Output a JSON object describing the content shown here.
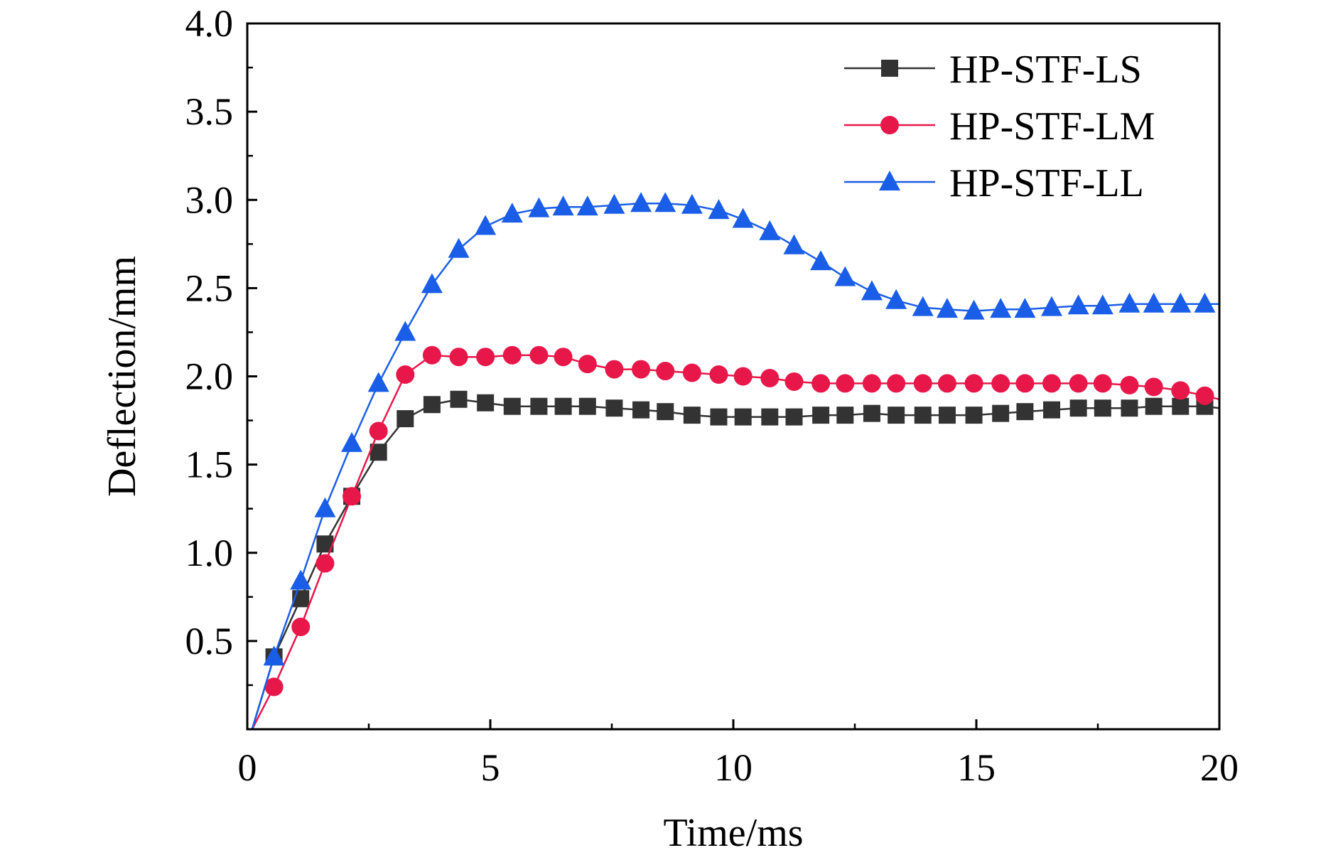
{
  "chart_data": {
    "type": "line",
    "xlabel": "Time/ms",
    "ylabel": "Deflection/mm",
    "xlim": [
      0,
      20
    ],
    "ylim": [
      0,
      4.0
    ],
    "x_ticks": [
      "0",
      "5",
      "10",
      "15",
      "20"
    ],
    "y_ticks": [
      "0.5",
      "1.0",
      "1.5",
      "2.0",
      "2.5",
      "3.0",
      "3.5",
      "4.0"
    ],
    "grid": false,
    "legend_position": "top-right",
    "series": [
      {
        "name": "HP-STF-LS",
        "color": "#333333",
        "marker": "square",
        "x": [
          0.1,
          0.55,
          1.1,
          1.6,
          2.15,
          2.7,
          3.25,
          3.8,
          4.35,
          4.9,
          5.45,
          6.0,
          6.5,
          7.0,
          7.55,
          8.1,
          8.6,
          9.15,
          9.7,
          10.2,
          10.75,
          11.25,
          11.8,
          12.3,
          12.85,
          13.35,
          13.9,
          14.4,
          14.95,
          15.5,
          16.0,
          16.55,
          17.1,
          17.6,
          18.15,
          18.65,
          19.2,
          19.7,
          20.0
        ],
        "y": [
          0.0,
          0.41,
          0.74,
          1.05,
          1.32,
          1.57,
          1.76,
          1.84,
          1.87,
          1.85,
          1.83,
          1.83,
          1.83,
          1.83,
          1.82,
          1.81,
          1.8,
          1.78,
          1.77,
          1.77,
          1.77,
          1.77,
          1.78,
          1.78,
          1.79,
          1.78,
          1.78,
          1.78,
          1.78,
          1.79,
          1.8,
          1.81,
          1.82,
          1.82,
          1.82,
          1.83,
          1.83,
          1.83,
          1.82
        ]
      },
      {
        "name": "HP-STF-LM",
        "color": "#e8174a",
        "marker": "circle",
        "x": [
          0.1,
          0.55,
          1.1,
          1.6,
          2.15,
          2.7,
          3.25,
          3.8,
          4.35,
          4.9,
          5.45,
          6.0,
          6.5,
          7.0,
          7.55,
          8.1,
          8.6,
          9.15,
          9.7,
          10.2,
          10.75,
          11.25,
          11.8,
          12.3,
          12.85,
          13.35,
          13.9,
          14.4,
          14.95,
          15.5,
          16.0,
          16.55,
          17.1,
          17.6,
          18.15,
          18.65,
          19.2,
          19.7,
          20.0
        ],
        "y": [
          0.0,
          0.24,
          0.58,
          0.94,
          1.32,
          1.69,
          2.01,
          2.12,
          2.11,
          2.11,
          2.12,
          2.12,
          2.11,
          2.07,
          2.04,
          2.04,
          2.03,
          2.02,
          2.01,
          2.0,
          1.99,
          1.97,
          1.96,
          1.96,
          1.96,
          1.96,
          1.96,
          1.96,
          1.96,
          1.96,
          1.96,
          1.96,
          1.96,
          1.96,
          1.95,
          1.94,
          1.92,
          1.89,
          1.87
        ]
      },
      {
        "name": "HP-STF-LL",
        "color": "#1a5ee8",
        "marker": "triangle",
        "x": [
          0.1,
          0.55,
          1.1,
          1.6,
          2.15,
          2.7,
          3.25,
          3.8,
          4.35,
          4.9,
          5.45,
          6.0,
          6.5,
          7.0,
          7.55,
          8.1,
          8.6,
          9.15,
          9.7,
          10.2,
          10.75,
          11.25,
          11.8,
          12.3,
          12.85,
          13.35,
          13.9,
          14.4,
          14.95,
          15.5,
          16.0,
          16.55,
          17.1,
          17.6,
          18.15,
          18.65,
          19.2,
          19.7,
          20.0
        ],
        "y": [
          0.0,
          0.41,
          0.84,
          1.25,
          1.62,
          1.96,
          2.25,
          2.52,
          2.72,
          2.85,
          2.92,
          2.95,
          2.96,
          2.96,
          2.97,
          2.98,
          2.98,
          2.97,
          2.94,
          2.89,
          2.82,
          2.74,
          2.65,
          2.56,
          2.48,
          2.43,
          2.39,
          2.38,
          2.37,
          2.38,
          2.38,
          2.39,
          2.4,
          2.4,
          2.41,
          2.41,
          2.41,
          2.41,
          2.41
        ]
      }
    ]
  }
}
